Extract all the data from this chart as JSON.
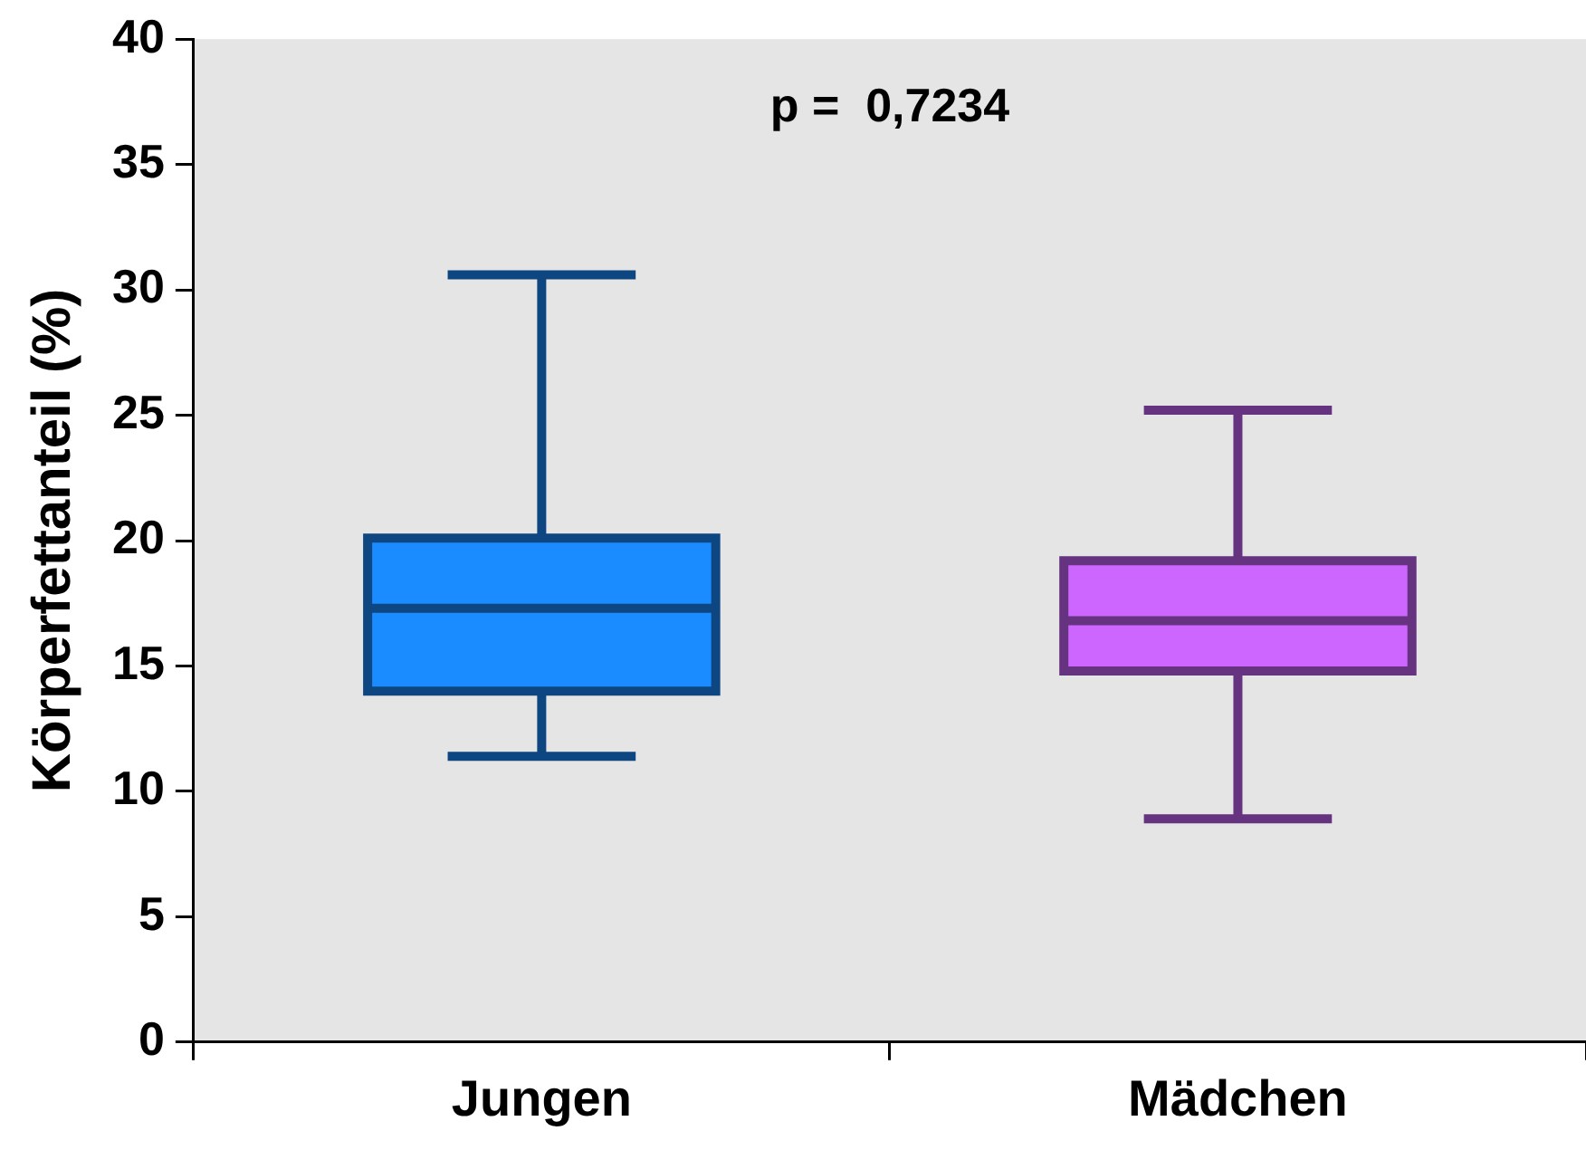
{
  "chart_data": {
    "type": "box",
    "ylabel": "Körperfettanteil (%)",
    "categories": [
      "Jungen",
      "Mädchen"
    ],
    "boxes": [
      {
        "low": 11.4,
        "q1": 14.0,
        "median": 17.3,
        "q3": 20.1,
        "high": 30.6
      },
      {
        "low": 8.9,
        "q1": 14.8,
        "median": 16.8,
        "q3": 19.2,
        "high": 25.2
      }
    ],
    "colors": [
      "#1a8cff",
      "#cc66ff"
    ],
    "ylim": [
      0,
      40
    ],
    "yticks": [
      0,
      5,
      10,
      15,
      20,
      25,
      30,
      35,
      40
    ],
    "grid": false,
    "legend": false,
    "annotations": [
      "p =  0,7234"
    ]
  }
}
